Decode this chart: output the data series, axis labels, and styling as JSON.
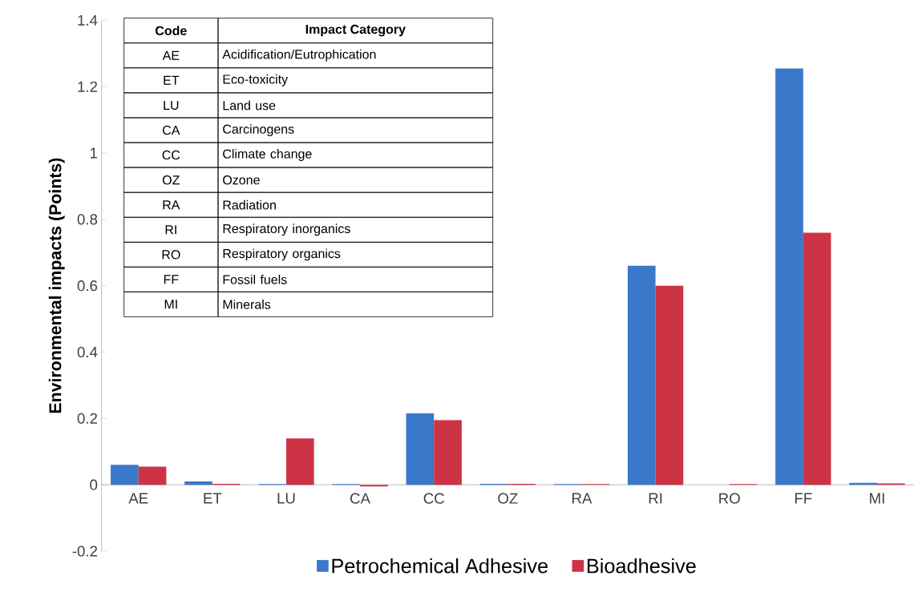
{
  "chart_data": {
    "type": "bar",
    "ylabel": "Environmental impacts (Points)",
    "categories": [
      "AE",
      "ET",
      "LU",
      "CA",
      "CC",
      "OZ",
      "RA",
      "RI",
      "RO",
      "FF",
      "MI"
    ],
    "series": [
      {
        "name": "Petrochemical Adhesive",
        "color": "#3a78c9",
        "values": [
          0.06,
          0.01,
          0.002,
          0.002,
          0.215,
          0.003,
          0.002,
          0.66,
          null,
          1.255,
          0.006
        ]
      },
      {
        "name": "Bioadhesive",
        "color": "#cc3344",
        "values": [
          0.055,
          0.003,
          0.14,
          -0.005,
          0.195,
          0.003,
          0.002,
          0.6,
          0.002,
          0.76,
          0.004
        ]
      }
    ],
    "ylim": [
      -0.2,
      1.4
    ],
    "yticks": [
      -0.2,
      0,
      0.2,
      0.4,
      0.6,
      0.8,
      1,
      1.2,
      1.4
    ],
    "legend": "bottom",
    "grid": false,
    "annotations": [
      "Code",
      "Impact Category",
      "AE",
      "Acidification/Eutrophication",
      "ET",
      "Eco-toxicity",
      "LU",
      "Land use",
      "CA",
      "Carcinogens",
      "CC",
      "Climate change",
      "OZ",
      "Ozone",
      "RA",
      "Radiation",
      "RI",
      "Respiratory inorganics",
      "RO",
      "Respiratory organics",
      "FF",
      "Fossil fuels",
      "MI",
      "Minerals"
    ]
  }
}
